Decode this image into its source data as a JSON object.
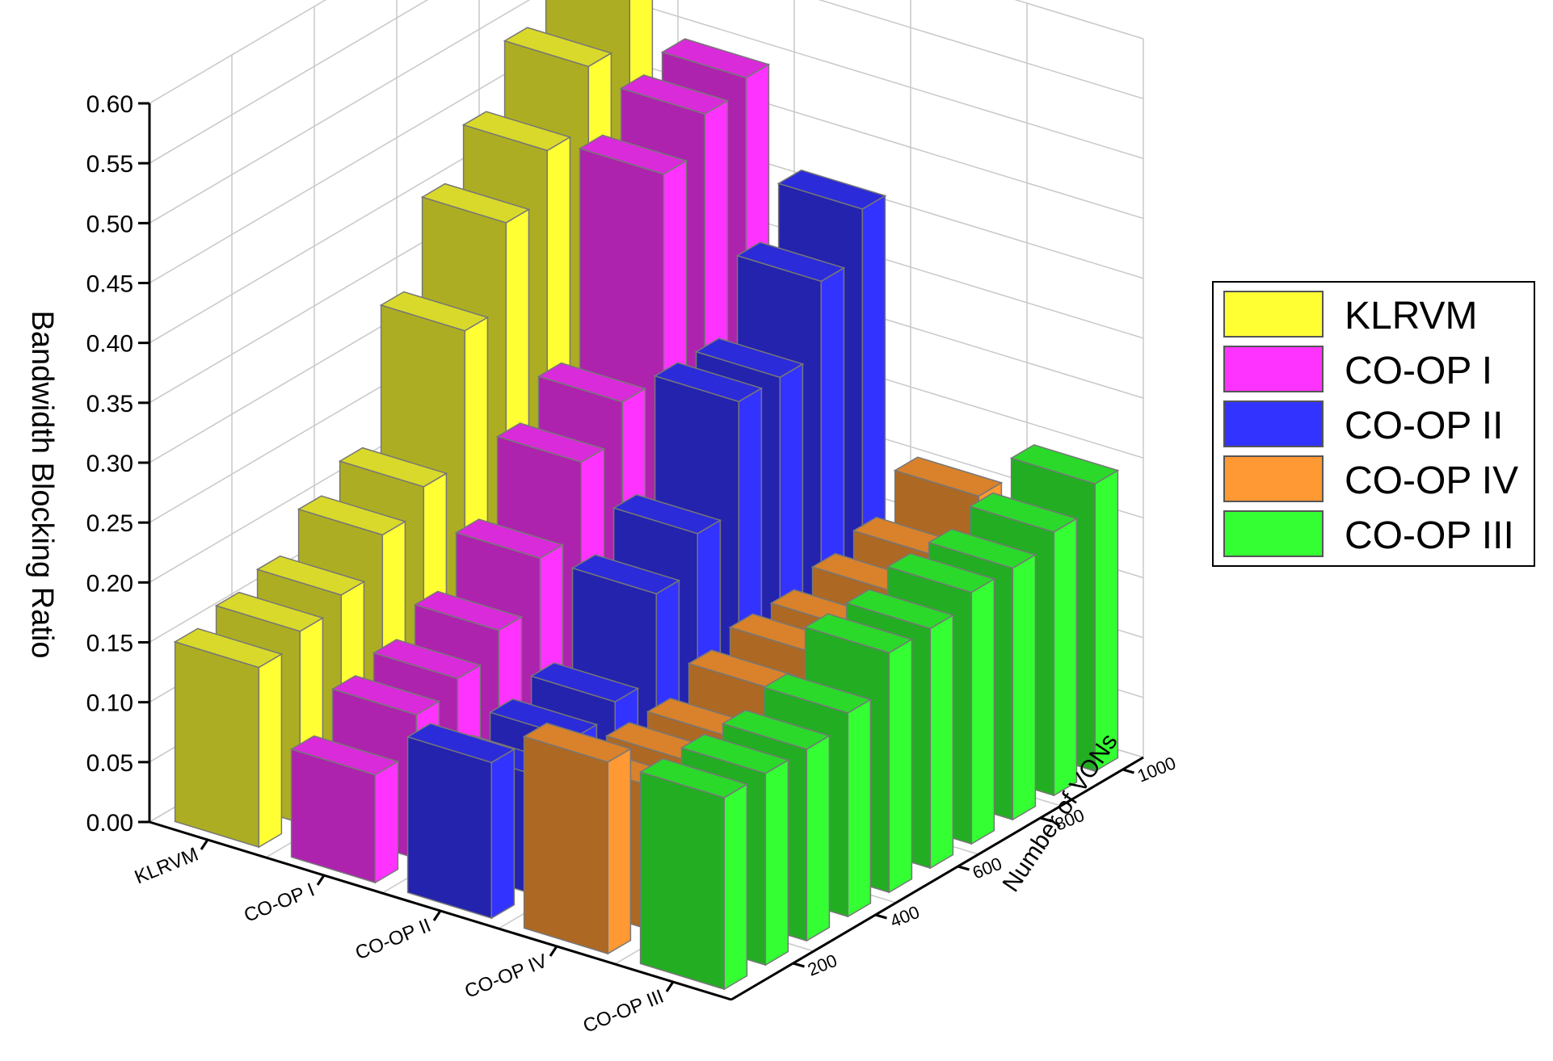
{
  "chart_data": {
    "type": "bar",
    "variant": "3d-bar",
    "title": "",
    "ylabel": "Bandwidth Blocking Ratio",
    "xlabel": "",
    "zlabel": "Number of VONs",
    "ylim": [
      0,
      0.6
    ],
    "yticks": [
      "0.00",
      "0.05",
      "0.10",
      "0.15",
      "0.20",
      "0.25",
      "0.30",
      "0.35",
      "0.40",
      "0.45",
      "0.50",
      "0.55",
      "0.60"
    ],
    "categories": [
      "KLRVM",
      "CO-OP I",
      "CO-OP II",
      "CO-OP IV",
      "CO-OP III"
    ],
    "x": [
      100,
      200,
      300,
      400,
      500,
      600,
      700,
      800,
      900,
      1000
    ],
    "depth_tick_labels": [
      "200",
      "400",
      "600",
      "800",
      "1000"
    ],
    "grid": true,
    "legend_position": "right",
    "series": [
      {
        "name": "KLRVM",
        "color": "#ffff33",
        "values": [
          0.15,
          0.16,
          0.17,
          0.2,
          0.22,
          0.33,
          0.4,
          0.44,
          0.49,
          0.53
        ]
      },
      {
        "name": "CO-OP I",
        "color": "#ff33ff",
        "values": [
          0.09,
          0.12,
          0.13,
          0.15,
          0.19,
          0.25,
          0.28,
          0.45,
          0.48,
          0.49
        ]
      },
      {
        "name": "CO-OP II",
        "color": "#3333ff",
        "values": [
          0.13,
          0.1,
          0.11,
          0.12,
          0.19,
          0.22,
          0.31,
          0.31,
          0.37,
          0.41
        ]
      },
      {
        "name": "CO-OP IV",
        "color": "#ff9933",
        "values": [
          0.16,
          0.12,
          0.12,
          0.12,
          0.14,
          0.15,
          0.15,
          0.16,
          0.17,
          0.2
        ]
      },
      {
        "name": "CO-OP III",
        "color": "#33ff33",
        "values": [
          0.16,
          0.16,
          0.16,
          0.17,
          0.2,
          0.2,
          0.21,
          0.21,
          0.22,
          0.24
        ]
      }
    ]
  }
}
